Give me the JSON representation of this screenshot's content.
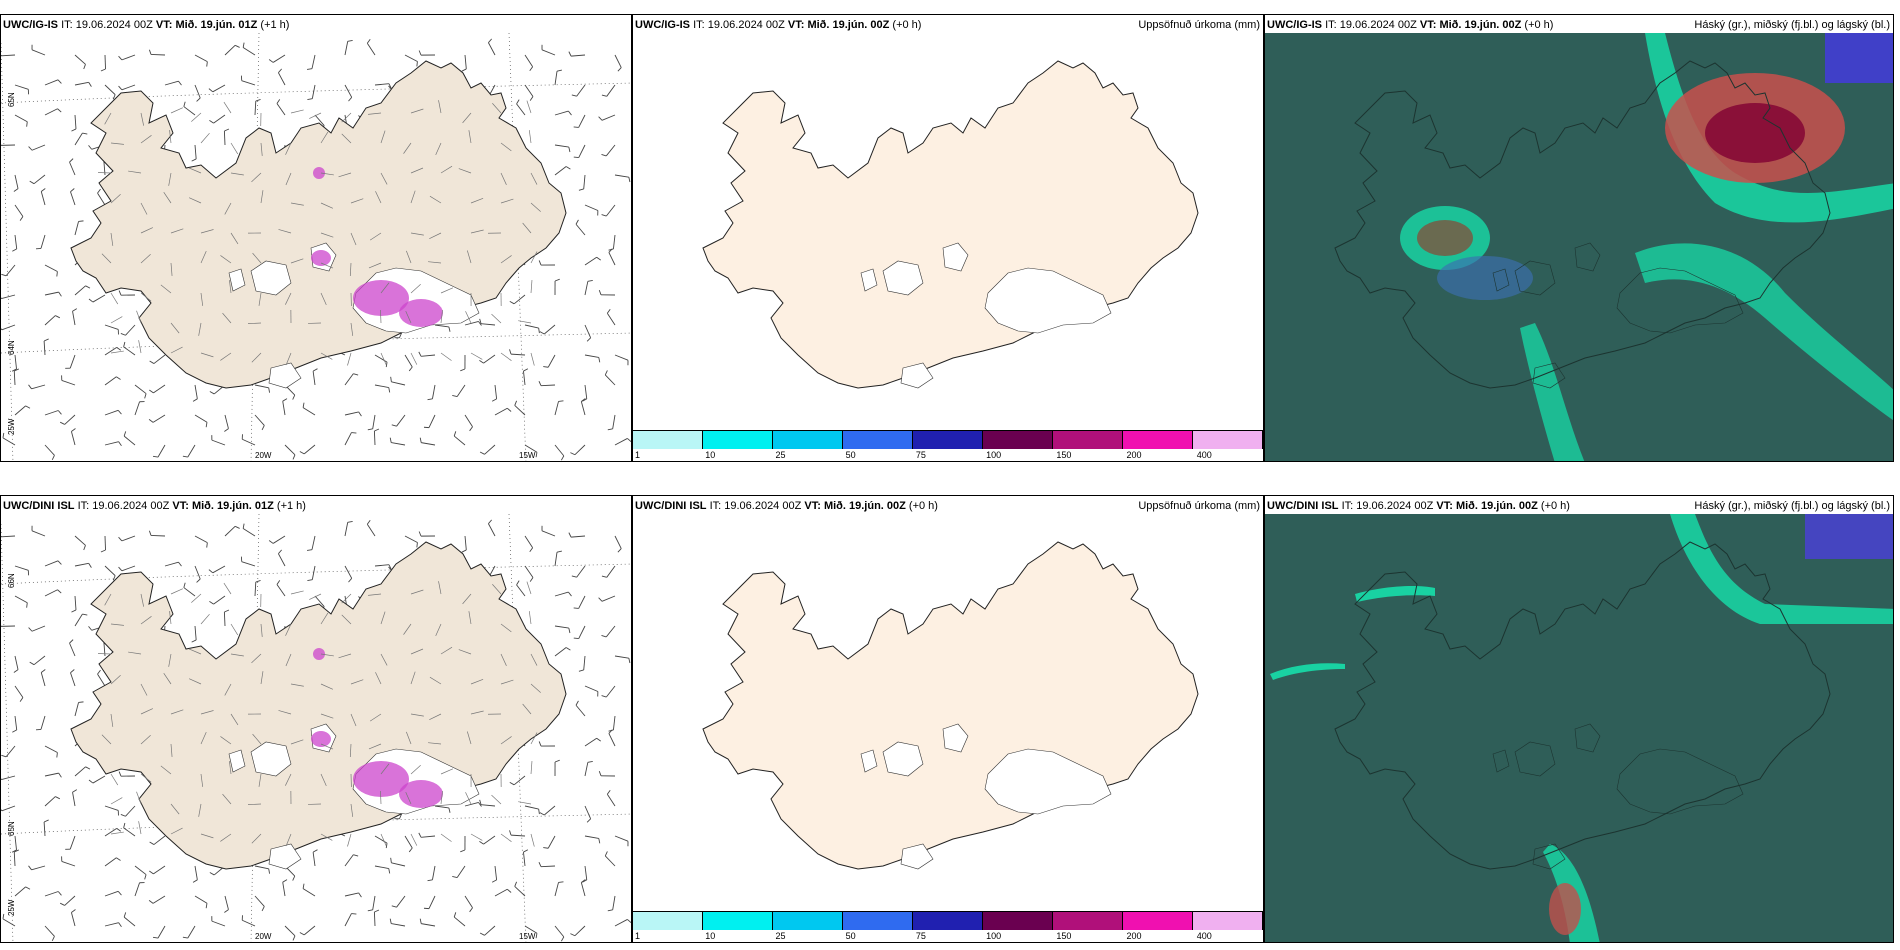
{
  "panels": [
    {
      "row": 0,
      "col": 0,
      "model": "UWC/IG-IS",
      "it_label": "IT:",
      "it": "19.06.2024 00Z",
      "vt_label": "VT:",
      "vt": "Mið. 19.jún. 01Z",
      "lead": "(+1 h)",
      "type": "wind",
      "lat_labels": [
        "65N",
        "64N",
        "25W"
      ],
      "lon_labels": [
        "20W",
        "15W"
      ]
    },
    {
      "row": 0,
      "col": 1,
      "model": "UWC/IG-IS",
      "it_label": "IT:",
      "it": "19.06.2024 00Z",
      "vt_label": "VT:",
      "vt": "Mið. 19.jún. 00Z",
      "lead": "(+0 h)",
      "type": "precip",
      "right_title": "Uppsöfnuð úrkoma (mm)"
    },
    {
      "row": 0,
      "col": 2,
      "model": "UWC/IG-IS",
      "it_label": "IT:",
      "it": "19.06.2024 00Z",
      "vt_label": "VT:",
      "vt": "Mið. 19.jún. 00Z",
      "lead": "(+0 h)",
      "type": "cloud",
      "right_title": "Háský (gr.), miðský (fj.bl.) og lágský (bl.)"
    },
    {
      "row": 1,
      "col": 0,
      "model": "UWC/DINI ISL",
      "it_label": "IT:",
      "it": "19.06.2024 00Z",
      "vt_label": "VT:",
      "vt": "Mið. 19.jún. 01Z",
      "lead": "(+1 h)",
      "type": "wind",
      "lat_labels": [
        "66N",
        "65N",
        "25W"
      ],
      "lon_labels": [
        "20W",
        "15W"
      ]
    },
    {
      "row": 1,
      "col": 1,
      "model": "UWC/DINI ISL",
      "it_label": "IT:",
      "it": "19.06.2024 00Z",
      "vt_label": "VT:",
      "vt": "Mið. 19.jún. 00Z",
      "lead": "(+0 h)",
      "type": "precip",
      "right_title": "Uppsöfnuð úrkoma (mm)"
    },
    {
      "row": 1,
      "col": 2,
      "model": "UWC/DINI ISL",
      "it_label": "IT:",
      "it": "19.06.2024 00Z",
      "vt_label": "VT:",
      "vt": "Mið. 19.jún. 00Z",
      "lead": "(+0 h)",
      "type": "cloud",
      "right_title": "Háský (gr.), miðský (fj.bl.) og lágský (bl.)"
    }
  ],
  "precip_scale": {
    "ticks": [
      "1",
      "10",
      "25",
      "50",
      "75",
      "100",
      "150",
      "200",
      "400"
    ],
    "colors": [
      "#b9f6f6",
      "#00f0f0",
      "#00c8f0",
      "#2f6bf0",
      "#2020b0",
      "#6a0050",
      "#b0107a",
      "#f010b0",
      "#f0b0f0"
    ]
  },
  "colors": {
    "land_wind": "#f0e6d8",
    "land_precip": "#fdf0e2",
    "cloud_sea": "#2f5e58",
    "cloud_teal": "#19d2a2",
    "snow_purple": "#cc44cc"
  }
}
